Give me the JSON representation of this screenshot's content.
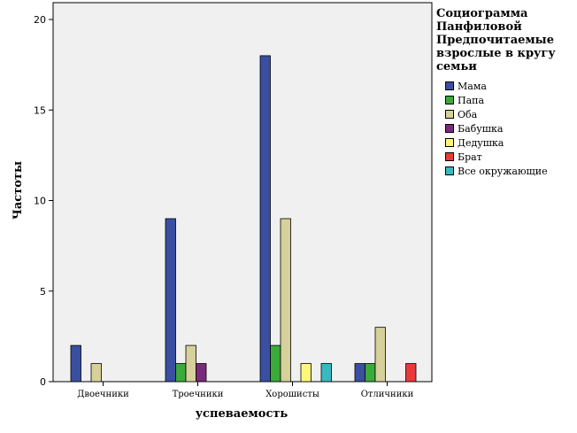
{
  "chart_data": {
    "type": "bar",
    "title": [
      "Социограмма",
      "Панфиловой",
      "Предпочитаемые",
      "взрослые в кругу",
      "семьи"
    ],
    "xlabel": "успеваемость",
    "ylabel": "Частоты",
    "categories": [
      "Двоечники",
      "Троечники",
      "Хорошисты",
      "Отличники"
    ],
    "ylim": [
      0,
      20
    ],
    "yticks": [
      0,
      5,
      10,
      15,
      20
    ],
    "grid": false,
    "legend_position": "right",
    "series": [
      {
        "name": "Мама",
        "color": "#3a4fa1",
        "values": [
          2,
          9,
          18,
          1
        ]
      },
      {
        "name": "Папа",
        "color": "#3aaa3a",
        "values": [
          0,
          1,
          2,
          1
        ]
      },
      {
        "name": "Оба",
        "color": "#d6d09a",
        "values": [
          1,
          2,
          9,
          3
        ]
      },
      {
        "name": "Бабушка",
        "color": "#7a2a7a",
        "values": [
          0,
          1,
          0,
          0
        ]
      },
      {
        "name": "Дедушка",
        "color": "#fdf67a",
        "values": [
          0,
          0,
          1,
          0
        ]
      },
      {
        "name": "Брат",
        "color": "#e83a3a",
        "values": [
          0,
          0,
          0,
          1
        ]
      },
      {
        "name": "Все окружающие",
        "color": "#3ab8c0",
        "values": [
          0,
          0,
          1,
          0
        ]
      }
    ]
  }
}
